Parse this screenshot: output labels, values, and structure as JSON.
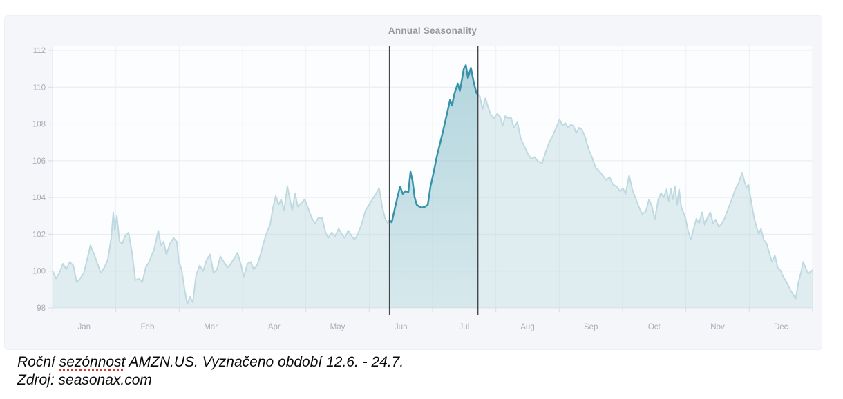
{
  "caption": {
    "line1_prefix": "Roční ",
    "line1_marked_word": "sezónnost",
    "line1_suffix": " AMZN.US. Vyznačeno období 12.6. - 24.7.",
    "line2": "Zdroj: seasonax.com"
  },
  "colors": {
    "panel_bg": "#f4f6f9",
    "plot_bg": "#fcfdfe",
    "grid_h": "#e8ecef",
    "grid_v": "#eef1f4",
    "axis": "#e2e6ea",
    "tick": "#d8dde2",
    "label": "#a8adb4",
    "title": "#97999d",
    "light_line": "#bfd9e0",
    "light_fill": "rgba(176,211,218,0.38)",
    "accent_line": "#3793aa",
    "accent_fill_top": "rgba(55,147,170,0.26)",
    "accent_fill_bottom": "rgba(55,147,170,0.05)",
    "marker_line": "#43474e",
    "watermark": "#d2d6da",
    "caption_underline": "#e0372c"
  },
  "chart_data": {
    "type": "area",
    "title": "Annual Seasonality",
    "watermark": "seasonax",
    "x_axis": {
      "months": [
        "Jan",
        "Feb",
        "Mar",
        "Apr",
        "May",
        "Jun",
        "Jul",
        "Aug",
        "Sep",
        "Oct",
        "Nov",
        "Dec"
      ],
      "days_per_year": 365
    },
    "y_axis": {
      "min": 98,
      "max": 112,
      "tick_step": 2,
      "ticks": [
        98,
        100,
        102,
        104,
        106,
        108,
        110,
        112
      ]
    },
    "highlight": {
      "start_day": 161.9,
      "end_day": 204.2,
      "period_label": "12.6. - 24.7."
    },
    "series": [
      {
        "name": "AMZN.US",
        "points": [
          [
            0,
            100.0
          ],
          [
            1.7,
            99.6
          ],
          [
            3.3,
            99.9
          ],
          [
            5,
            100.4
          ],
          [
            6.6,
            100.1
          ],
          [
            8.3,
            100.5
          ],
          [
            10,
            100.3
          ],
          [
            11.6,
            99.4
          ],
          [
            13.3,
            99.6
          ],
          [
            15,
            99.9
          ],
          [
            17,
            100.8
          ],
          [
            18.2,
            101.4
          ],
          [
            20,
            100.9
          ],
          [
            21.6,
            100.4
          ],
          [
            23.2,
            99.9
          ],
          [
            24.9,
            100.2
          ],
          [
            26.5,
            100.6
          ],
          [
            28.2,
            101.8
          ],
          [
            29.2,
            103.2
          ],
          [
            29.9,
            102.2
          ],
          [
            30.9,
            103.0
          ],
          [
            32.2,
            101.6
          ],
          [
            33.5,
            101.5
          ],
          [
            34.8,
            101.9
          ],
          [
            36.5,
            102.1
          ],
          [
            38.2,
            101.0
          ],
          [
            39.8,
            99.5
          ],
          [
            41.5,
            99.6
          ],
          [
            43.1,
            99.4
          ],
          [
            44.8,
            100.2
          ],
          [
            46.4,
            100.5
          ],
          [
            48.8,
            101.2
          ],
          [
            50.8,
            102.2
          ],
          [
            52.1,
            101.4
          ],
          [
            53.4,
            101.6
          ],
          [
            54.7,
            100.9
          ],
          [
            56.4,
            101.5
          ],
          [
            58.1,
            101.8
          ],
          [
            59.7,
            101.6
          ],
          [
            60.7,
            100.5
          ],
          [
            62,
            100.1
          ],
          [
            63.4,
            99.0
          ],
          [
            64.7,
            98.2
          ],
          [
            66,
            98.6
          ],
          [
            67.4,
            98.3
          ],
          [
            69,
            99.8
          ],
          [
            70.7,
            100.3
          ],
          [
            72.3,
            100.0
          ],
          [
            74,
            100.6
          ],
          [
            75.7,
            100.9
          ],
          [
            77.3,
            99.9
          ],
          [
            79,
            100.1
          ],
          [
            80.6,
            100.8
          ],
          [
            82.3,
            100.5
          ],
          [
            84,
            100.2
          ],
          [
            85.6,
            100.4
          ],
          [
            87.3,
            100.7
          ],
          [
            88.9,
            101.0
          ],
          [
            90.6,
            100.3
          ],
          [
            91.9,
            99.7
          ],
          [
            93.6,
            100.4
          ],
          [
            95.2,
            100.5
          ],
          [
            96.6,
            100.1
          ],
          [
            98.2,
            100.3
          ],
          [
            99.9,
            100.9
          ],
          [
            101.5,
            101.6
          ],
          [
            103.2,
            102.2
          ],
          [
            104.5,
            102.5
          ],
          [
            105.8,
            103.4
          ],
          [
            107.2,
            104.1
          ],
          [
            108.5,
            103.6
          ],
          [
            109.8,
            103.9
          ],
          [
            111.2,
            103.3
          ],
          [
            112.8,
            104.6
          ],
          [
            114.2,
            103.8
          ],
          [
            115.1,
            103.3
          ],
          [
            116.5,
            104.2
          ],
          [
            117.8,
            103.5
          ],
          [
            119.5,
            103.7
          ],
          [
            121.1,
            103.9
          ],
          [
            122.8,
            103.4
          ],
          [
            124.4,
            102.9
          ],
          [
            126.1,
            102.6
          ],
          [
            127.7,
            102.9
          ],
          [
            129.4,
            102.9
          ],
          [
            131.1,
            102.1
          ],
          [
            132.4,
            101.8
          ],
          [
            134,
            102.1
          ],
          [
            135.7,
            101.9
          ],
          [
            137.4,
            102.3
          ],
          [
            139,
            102.0
          ],
          [
            140.3,
            101.8
          ],
          [
            142,
            102.2
          ],
          [
            143.7,
            101.9
          ],
          [
            145,
            101.7
          ],
          [
            146.6,
            102.0
          ],
          [
            148.3,
            102.5
          ],
          [
            150.3,
            103.3
          ],
          [
            152,
            103.6
          ],
          [
            153.6,
            103.9
          ],
          [
            155.3,
            104.2
          ],
          [
            156.9,
            104.5
          ],
          [
            158.3,
            103.5
          ],
          [
            159.6,
            102.9
          ],
          [
            160.9,
            102.6
          ],
          [
            161.9,
            102.75
          ],
          [
            162.9,
            102.65
          ],
          [
            164.2,
            103.3
          ],
          [
            165.6,
            104.0
          ],
          [
            166.9,
            104.6
          ],
          [
            168.2,
            104.2
          ],
          [
            169.5,
            104.35
          ],
          [
            170.9,
            104.3
          ],
          [
            171.9,
            105.4
          ],
          [
            172.9,
            104.9
          ],
          [
            173.9,
            104.0
          ],
          [
            174.9,
            103.6
          ],
          [
            176.2,
            103.5
          ],
          [
            177.5,
            103.45
          ],
          [
            178.9,
            103.5
          ],
          [
            180.2,
            103.6
          ],
          [
            181.5,
            104.6
          ],
          [
            182.9,
            105.3
          ],
          [
            184.5,
            106.2
          ],
          [
            186.2,
            107.0
          ],
          [
            187.5,
            107.6
          ],
          [
            188.9,
            108.3
          ],
          [
            190.9,
            109.3
          ],
          [
            191.9,
            109.0
          ],
          [
            192.9,
            109.6
          ],
          [
            194.6,
            110.2
          ],
          [
            195.6,
            109.8
          ],
          [
            196.6,
            110.4
          ],
          [
            197.5,
            111.0
          ],
          [
            198.5,
            111.2
          ],
          [
            199.5,
            110.5
          ],
          [
            200.9,
            111.05
          ],
          [
            202.2,
            110.3
          ],
          [
            203.5,
            109.7
          ],
          [
            204.2,
            109.6
          ],
          [
            205.2,
            109.5
          ],
          [
            206.5,
            108.8
          ],
          [
            207.9,
            109.4
          ],
          [
            209.2,
            108.9
          ],
          [
            210.5,
            108.5
          ],
          [
            211.9,
            108.3
          ],
          [
            213.5,
            108.55
          ],
          [
            214.9,
            108.4
          ],
          [
            216.2,
            107.9
          ],
          [
            217.5,
            108.45
          ],
          [
            218.9,
            108.3
          ],
          [
            220.2,
            108.35
          ],
          [
            221.5,
            107.8
          ],
          [
            223.2,
            108.1
          ],
          [
            224.9,
            107.2
          ],
          [
            226.5,
            106.8
          ],
          [
            228.2,
            106.4
          ],
          [
            229.9,
            106.1
          ],
          [
            231.5,
            106.2
          ],
          [
            233.2,
            105.95
          ],
          [
            235.2,
            105.88
          ],
          [
            236.9,
            106.5
          ],
          [
            238.5,
            107.0
          ],
          [
            240.2,
            107.35
          ],
          [
            241.9,
            107.8
          ],
          [
            243.5,
            108.25
          ],
          [
            244.9,
            107.9
          ],
          [
            246.2,
            108.05
          ],
          [
            247.5,
            107.8
          ],
          [
            248.9,
            107.95
          ],
          [
            250.2,
            107.9
          ],
          [
            251.5,
            107.5
          ],
          [
            252.9,
            107.8
          ],
          [
            254.2,
            107.7
          ],
          [
            255.9,
            107.25
          ],
          [
            257.5,
            106.6
          ],
          [
            259.2,
            106.15
          ],
          [
            260.9,
            105.6
          ],
          [
            262.5,
            105.45
          ],
          [
            264.2,
            105.2
          ],
          [
            265.9,
            104.95
          ],
          [
            267.5,
            105.1
          ],
          [
            269.2,
            104.7
          ],
          [
            270.9,
            104.6
          ],
          [
            272.5,
            104.35
          ],
          [
            273.9,
            104.5
          ],
          [
            275.2,
            104.2
          ],
          [
            276.9,
            105.2
          ],
          [
            278.5,
            104.4
          ],
          [
            280.2,
            103.9
          ],
          [
            281.9,
            103.4
          ],
          [
            283.2,
            103.1
          ],
          [
            284.9,
            103.25
          ],
          [
            286.5,
            103.9
          ],
          [
            287.9,
            103.5
          ],
          [
            289.2,
            102.8
          ],
          [
            290.9,
            103.9
          ],
          [
            292.2,
            104.25
          ],
          [
            293.5,
            104.0
          ],
          [
            294.9,
            104.45
          ],
          [
            295.9,
            103.8
          ],
          [
            296.9,
            104.5
          ],
          [
            297.9,
            103.9
          ],
          [
            298.9,
            104.6
          ],
          [
            299.9,
            103.6
          ],
          [
            300.9,
            104.45
          ],
          [
            301.9,
            103.5
          ],
          [
            302.9,
            103.2
          ],
          [
            303.9,
            102.9
          ],
          [
            305.2,
            102.2
          ],
          [
            306.5,
            101.7
          ],
          [
            307.9,
            102.3
          ],
          [
            309.2,
            102.85
          ],
          [
            310.5,
            102.6
          ],
          [
            311.9,
            103.2
          ],
          [
            313.2,
            102.5
          ],
          [
            314.5,
            102.9
          ],
          [
            315.9,
            103.2
          ],
          [
            317.2,
            102.6
          ],
          [
            318.5,
            102.8
          ],
          [
            319.9,
            102.4
          ],
          [
            321.2,
            102.55
          ],
          [
            322.9,
            102.9
          ],
          [
            324.5,
            103.4
          ],
          [
            326.2,
            103.9
          ],
          [
            327.9,
            104.45
          ],
          [
            329.5,
            104.8
          ],
          [
            331.2,
            105.35
          ],
          [
            332.2,
            104.9
          ],
          [
            333.2,
            104.55
          ],
          [
            334.2,
            104.7
          ],
          [
            335.5,
            103.8
          ],
          [
            336.9,
            102.9
          ],
          [
            338.2,
            102.35
          ],
          [
            339.2,
            102.0
          ],
          [
            340.2,
            102.3
          ],
          [
            341.5,
            101.7
          ],
          [
            342.9,
            101.5
          ],
          [
            344.2,
            101.0
          ],
          [
            345.5,
            100.5
          ],
          [
            346.9,
            100.85
          ],
          [
            348.2,
            100.2
          ],
          [
            349.5,
            100.05
          ],
          [
            350.9,
            99.7
          ],
          [
            352.5,
            99.4
          ],
          [
            354.2,
            99.0
          ],
          [
            355.5,
            98.75
          ],
          [
            356.9,
            98.5
          ],
          [
            358.2,
            99.4
          ],
          [
            359.5,
            99.95
          ],
          [
            360.5,
            100.5
          ],
          [
            361.9,
            100.1
          ],
          [
            362.9,
            99.85
          ],
          [
            364.2,
            100.0
          ],
          [
            365,
            100.05
          ]
        ]
      }
    ]
  }
}
